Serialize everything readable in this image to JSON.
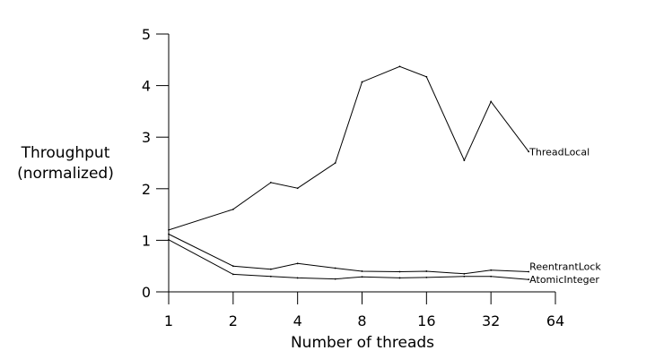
{
  "chart_data": {
    "type": "line",
    "x_scale": "log2",
    "xlabel": "Number of threads",
    "ylabel_lines": [
      "Throughput",
      "(normalized)"
    ],
    "x_ticks": [
      1,
      2,
      4,
      8,
      16,
      32,
      64
    ],
    "x_tick_labels": [
      "1",
      "2",
      "4",
      "8",
      "16",
      "32",
      "64"
    ],
    "y_ticks": [
      0,
      1,
      2,
      3,
      4,
      5
    ],
    "y_tick_labels": [
      "0",
      "1",
      "2",
      "3",
      "4",
      "5"
    ],
    "xlim": [
      1,
      64
    ],
    "ylim": [
      0,
      5
    ],
    "grid": false,
    "legend": "labels at line ends (right)",
    "series": [
      {
        "name": "ThreadLocal",
        "x": [
          1,
          2,
          3,
          4,
          6,
          8,
          12,
          16,
          24,
          32,
          48
        ],
        "y": [
          1.2,
          1.6,
          2.12,
          2.01,
          2.5,
          4.07,
          4.37,
          4.17,
          2.55,
          3.69,
          2.72
        ]
      },
      {
        "name": "ReentrantLock",
        "x": [
          1,
          2,
          3,
          4,
          6,
          8,
          12,
          16,
          24,
          32,
          48
        ],
        "y": [
          1.12,
          0.5,
          0.44,
          0.55,
          0.46,
          0.4,
          0.39,
          0.4,
          0.35,
          0.42,
          0.39
        ]
      },
      {
        "name": "AtomicInteger",
        "x": [
          1,
          2,
          3,
          4,
          6,
          8,
          12,
          16,
          24,
          32,
          48
        ],
        "y": [
          1.01,
          0.34,
          0.3,
          0.27,
          0.25,
          0.29,
          0.27,
          0.28,
          0.3,
          0.3,
          0.24
        ]
      }
    ]
  }
}
